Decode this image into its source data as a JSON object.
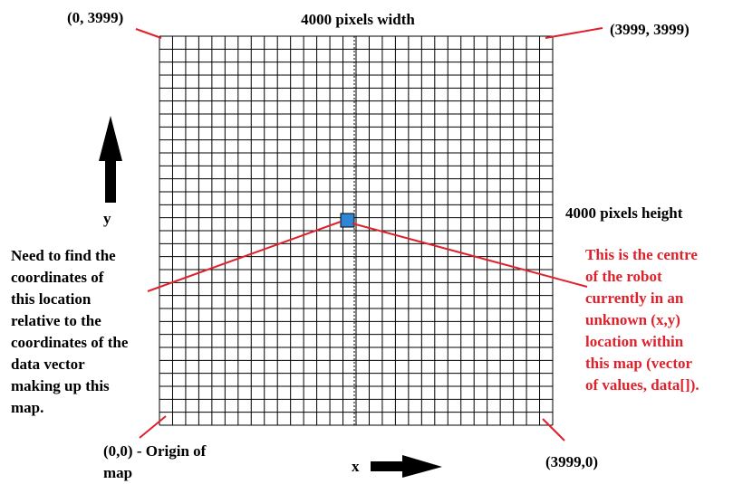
{
  "colors": {
    "grid": "#000000",
    "annotation": "#e0202a",
    "robot_cell": "#2f86d6",
    "text": "#000000",
    "red_text": "#e0202a"
  },
  "grid": {
    "columns": 30,
    "rows": 30
  },
  "labels": {
    "top_left": "(0, 3999)",
    "top_right": "(3999, 3999)",
    "bottom_left": "(0,0) - Origin of\nmap",
    "bottom_right": "(3999,0)",
    "width": "4000 pixels width",
    "height": "4000 pixels height",
    "y_axis": "y",
    "x_axis": "x"
  },
  "notes": {
    "left": "Need to find the\ncoordinates of\nthis location\nrelative to the\ncoordinates of the\ndata vector\nmaking up this\nmap.",
    "right": "This is the centre\nof the robot\ncurrently in an\nunknown (x,y)\nlocation within\nthis map (vector\nof values, data[])."
  }
}
